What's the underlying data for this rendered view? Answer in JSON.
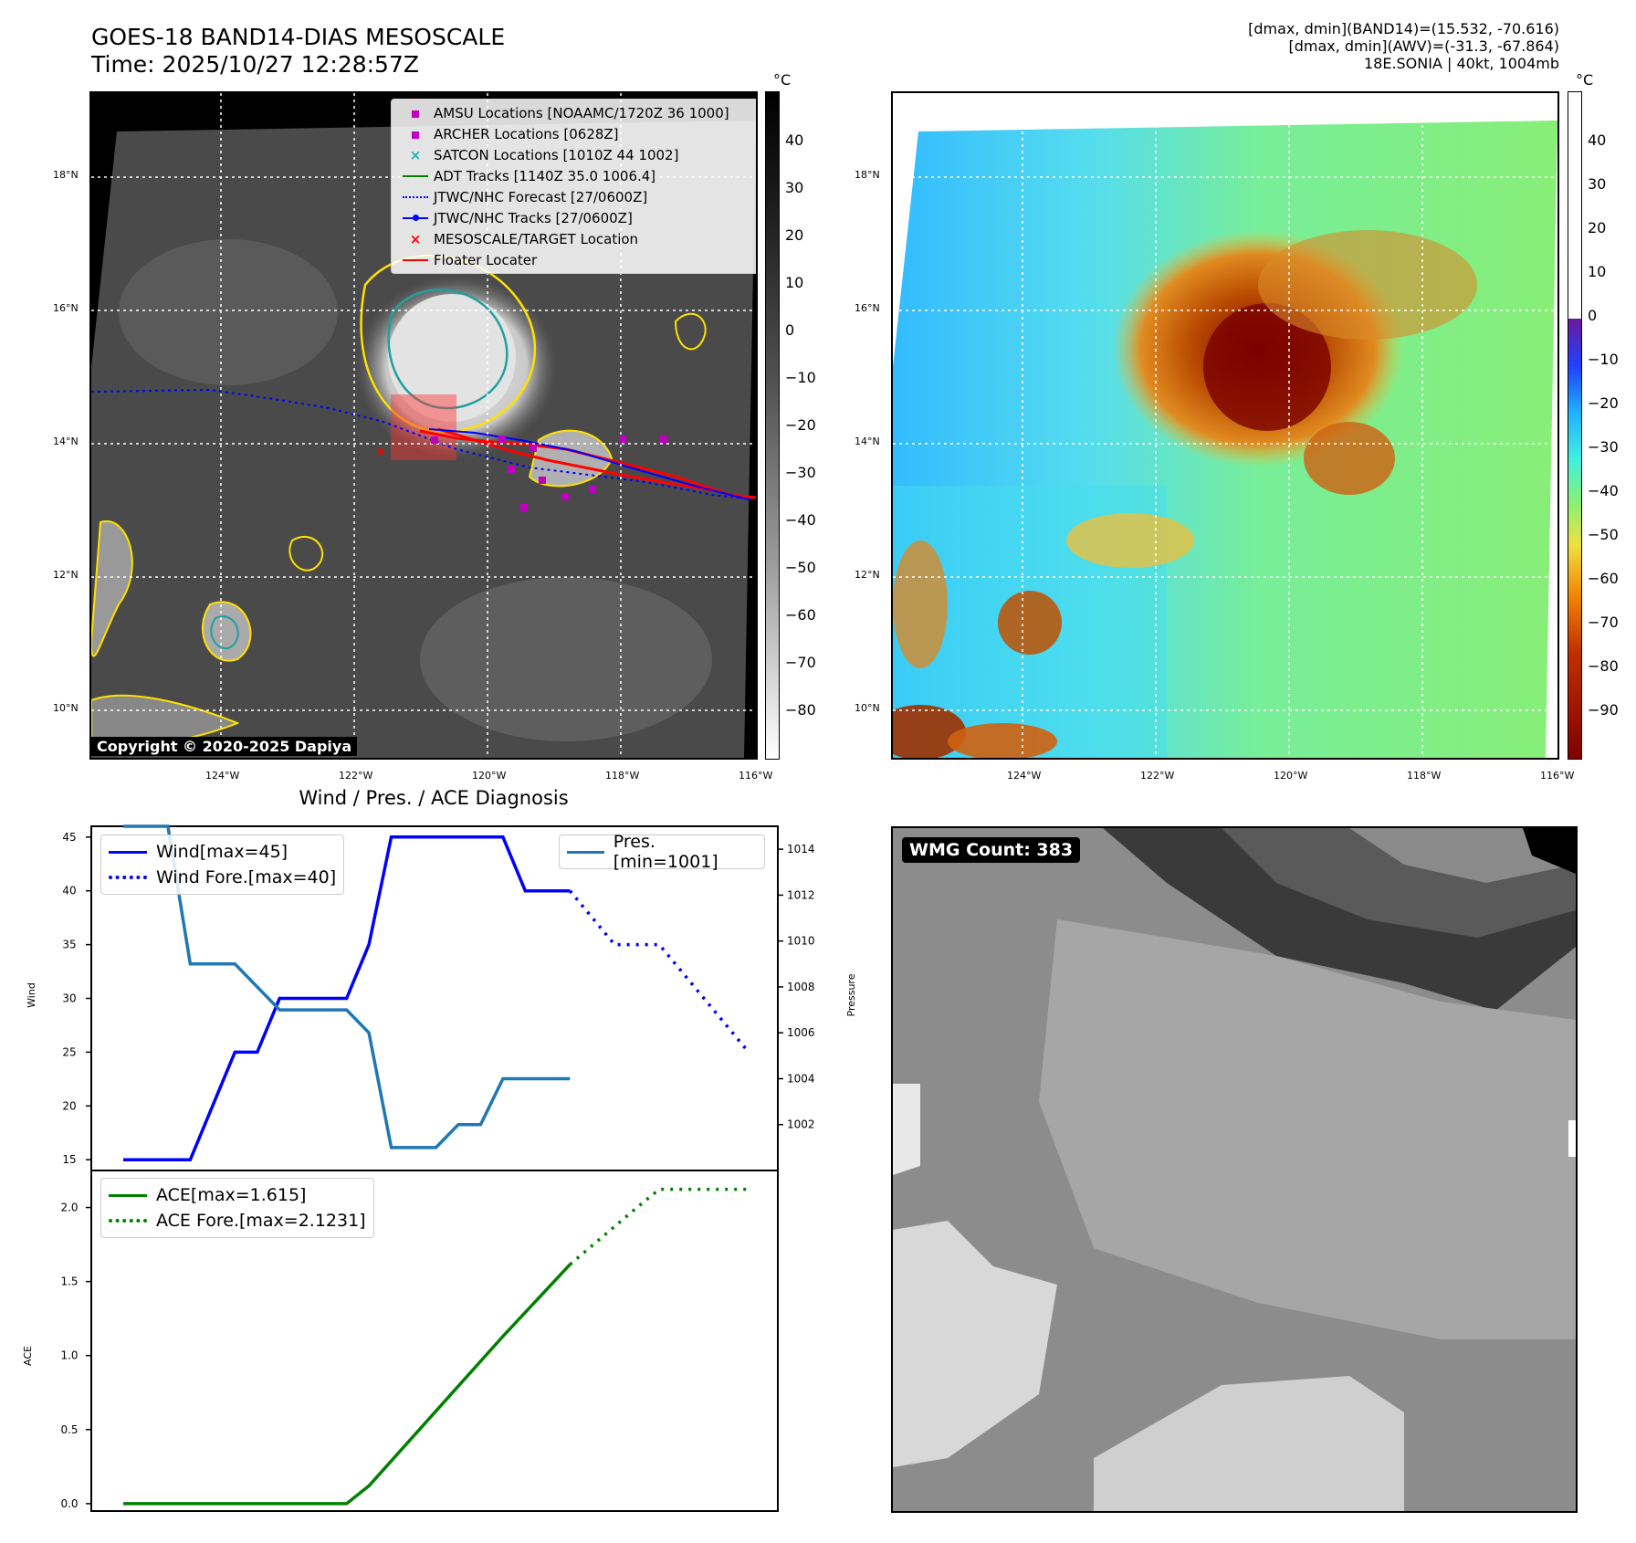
{
  "header": {
    "title_line1": "GOES-18 BAND14-DIAS MESOSCALE",
    "title_line2": "Time: 2025/10/27 12:28:57Z",
    "info_line1": "[dmax, dmin](BAND14)=(15.532, -70.616)",
    "info_line2": "[dmax, dmin](AWV)=(-31.3, -67.864)",
    "info_line3": "18E.SONIA | 40kt, 1004mb"
  },
  "map_axes": {
    "lat_labels": [
      "18°N",
      "16°N",
      "14°N",
      "12°N",
      "10°N"
    ],
    "lon_labels": [
      "124°W",
      "122°W",
      "120°W",
      "118°W",
      "116°W"
    ]
  },
  "colorbar_left": {
    "unit": "°C",
    "ticks": [
      "40",
      "30",
      "20",
      "10",
      "0",
      "−10",
      "−20",
      "−30",
      "−40",
      "−50",
      "−60",
      "−70",
      "−80"
    ]
  },
  "colorbar_right": {
    "unit": "°C",
    "ticks": [
      "40",
      "30",
      "20",
      "10",
      "0",
      "−10",
      "−20",
      "−30",
      "−40",
      "−50",
      "−60",
      "−70",
      "−80",
      "−90"
    ]
  },
  "map_legend": [
    {
      "label": "AMSU Locations [NOAAMC/1720Z 36 1000]",
      "marker": "square",
      "color": "#c000c0"
    },
    {
      "label": "ARCHER Locations [0628Z]",
      "marker": "square",
      "color": "#c000c0"
    },
    {
      "label": "SATCON Locations [1010Z 44 1002]",
      "marker": "x",
      "color": "#20b0b0"
    },
    {
      "label": "ADT Tracks [1140Z 35.0 1006.4]",
      "marker": "line",
      "color": "#008000"
    },
    {
      "label": "JTWC/NHC Forecast [27/0600Z]",
      "marker": "dotted",
      "color": "#0000ff"
    },
    {
      "label": "JTWC/NHC Tracks [27/0600Z]",
      "marker": "line-dot",
      "color": "#0000ff"
    },
    {
      "label": "MESOSCALE/TARGET Location",
      "marker": "x",
      "color": "#ff0000"
    },
    {
      "label": "Floater Locater",
      "marker": "line",
      "color": "#ff0000"
    }
  ],
  "copyright": "Copyright © 2020-2025 Dapiya",
  "wmg_count": "WMG Count: 383",
  "colors": {
    "wind": "#0000ff",
    "pressure": "#1f77b4",
    "ace": "#008000"
  },
  "chart_data": [
    {
      "type": "line",
      "title": "Wind / Pres. / ACE Diagnosis",
      "ylabel": "Wind",
      "y2label": "Pressure",
      "ylim": [
        14,
        46
      ],
      "y2lim": [
        1000.0,
        1015.0
      ],
      "yticks": [
        15,
        20,
        25,
        30,
        35,
        40,
        45
      ],
      "y2ticks": [
        1002,
        1004,
        1006,
        1008,
        1010,
        1012,
        1014
      ],
      "x": [
        0,
        1,
        2,
        3,
        4,
        5,
        6,
        7,
        8,
        9,
        10,
        11,
        12,
        13,
        14,
        15,
        16,
        17,
        18,
        19,
        20,
        21,
        22,
        23,
        24,
        25,
        26,
        27
      ],
      "series": [
        {
          "name": "Wind[max=45]",
          "style": "solid",
          "x": [
            0,
            3,
            5,
            6,
            7,
            10,
            11,
            12,
            14,
            17,
            18,
            20
          ],
          "values": [
            15,
            15,
            25,
            25,
            30,
            30,
            35,
            45,
            45,
            45,
            40,
            40
          ]
        },
        {
          "name": "Wind Fore.[max=40]",
          "style": "dotted",
          "x": [
            20,
            22,
            24,
            26,
            28
          ],
          "values": [
            40,
            35,
            35,
            30,
            25
          ]
        },
        {
          "name": "Pres.[min=1001]",
          "style": "solid",
          "axis": "right",
          "x": [
            0,
            2,
            3,
            5,
            6,
            7,
            10,
            11,
            12,
            14,
            15,
            16,
            17,
            18,
            20
          ],
          "values": [
            1015,
            1015,
            1009,
            1009,
            1008,
            1007,
            1007,
            1006,
            1001,
            1001,
            1002,
            1002,
            1004,
            1004,
            1004
          ]
        }
      ],
      "legend_placement": [
        "upper left",
        "upper right"
      ]
    },
    {
      "type": "line",
      "ylabel": "ACE",
      "ylim": [
        -0.05,
        2.25
      ],
      "yticks": [
        0.0,
        0.5,
        1.0,
        1.5,
        2.0
      ],
      "series": [
        {
          "name": "ACE[max=1.615]",
          "style": "solid",
          "x": [
            0,
            10,
            11,
            17,
            20
          ],
          "values": [
            0.0,
            0.0,
            0.12,
            1.13,
            1.615
          ]
        },
        {
          "name": "ACE Fore.[max=2.1231]",
          "style": "dotted",
          "x": [
            20,
            23,
            24,
            28
          ],
          "values": [
            1.615,
            2.0,
            2.1231,
            2.1231
          ]
        }
      ],
      "legend_placement": "upper left"
    }
  ]
}
